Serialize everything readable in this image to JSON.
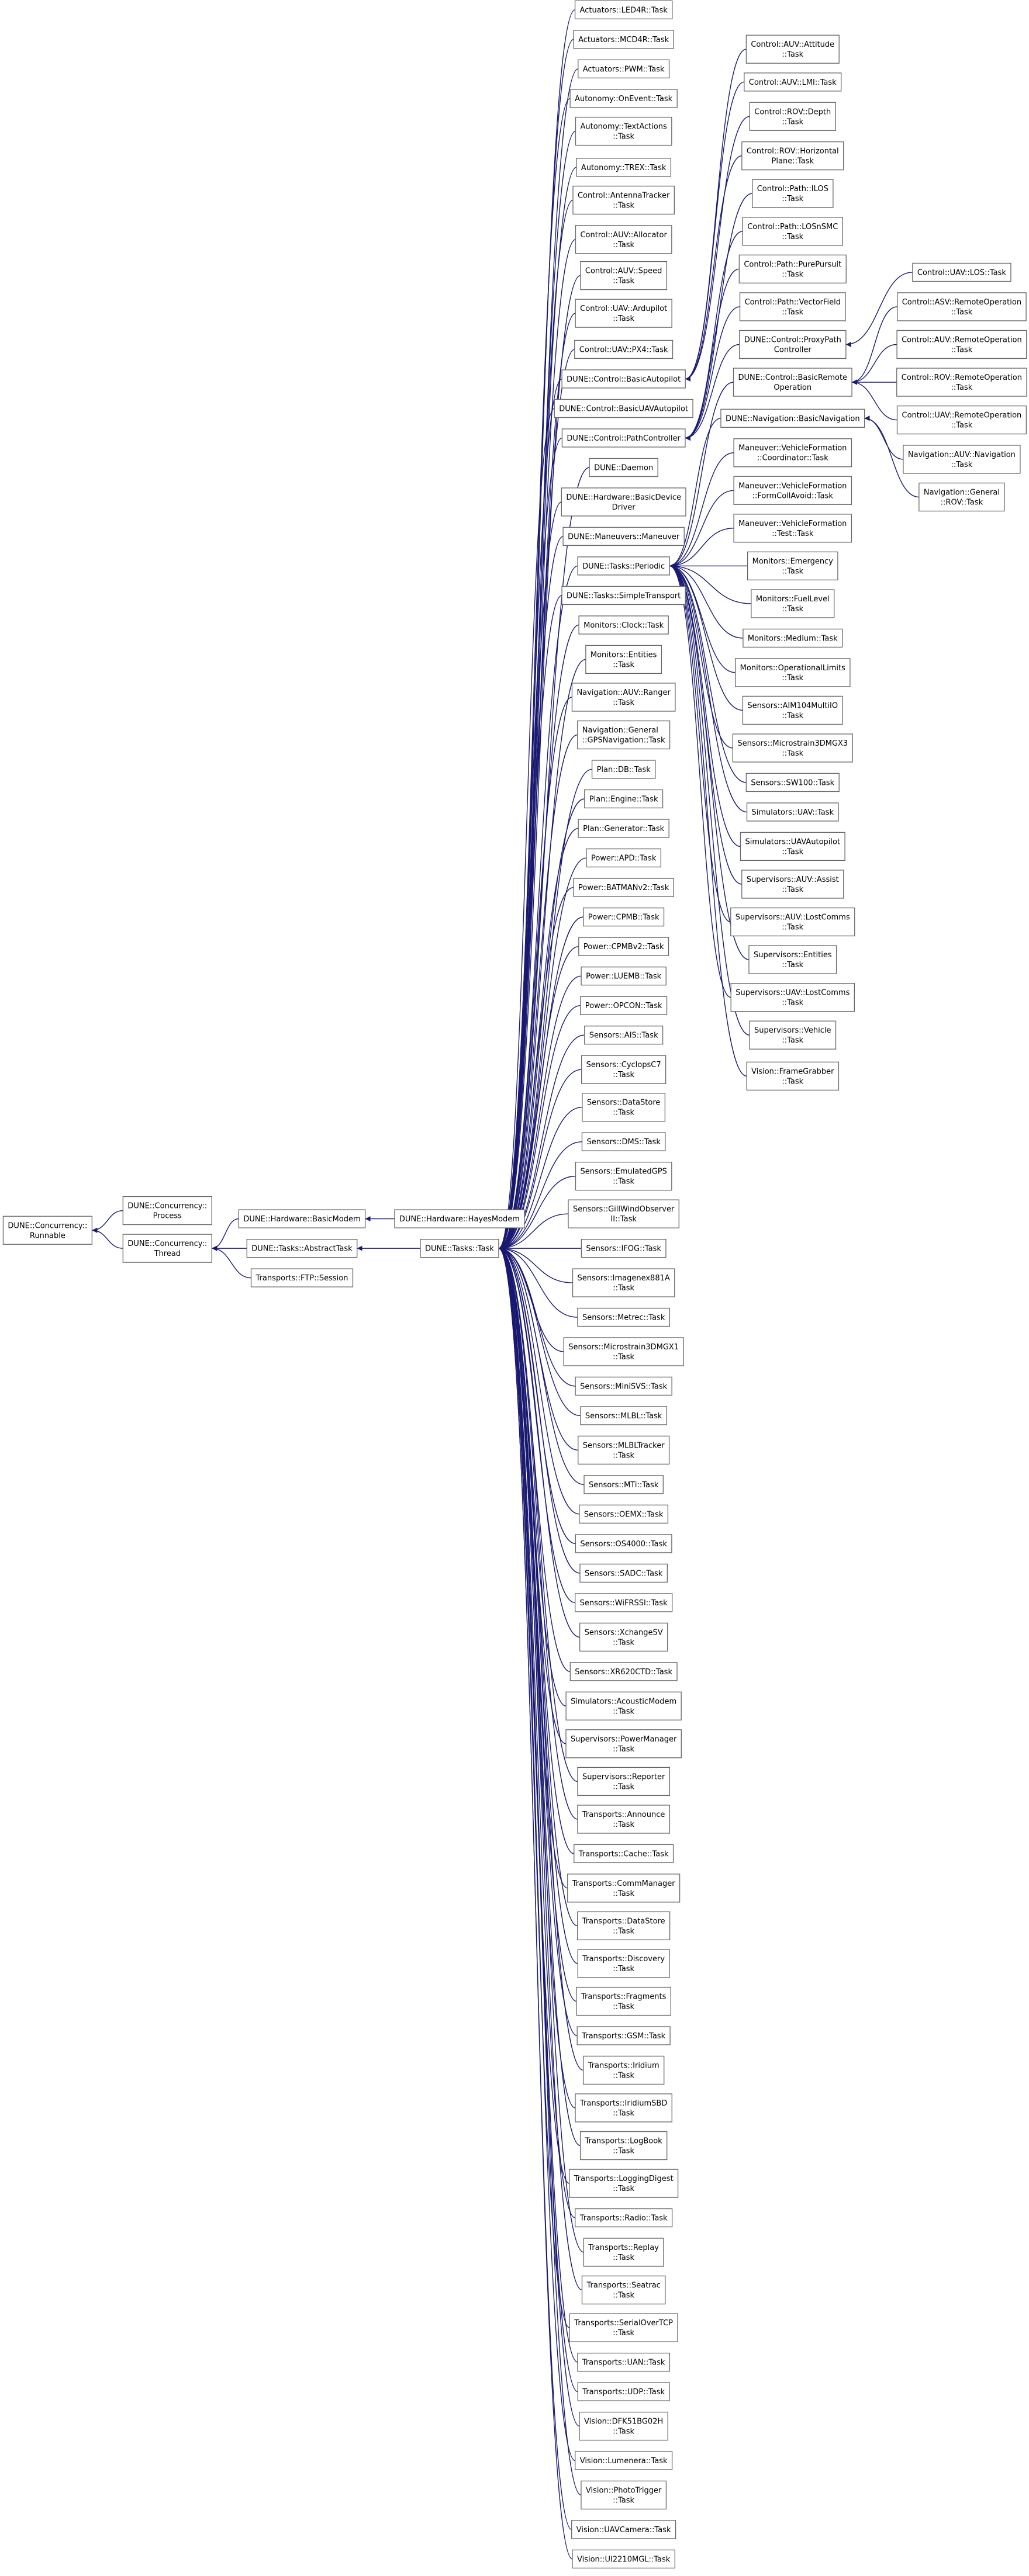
{
  "nodes": [
    [
      "DUNE::Concurrency::",
      "Runnable"
    ],
    [
      "DUNE::Concurrency::",
      "Process"
    ],
    [
      "DUNE::Concurrency::",
      "Thread"
    ],
    [
      "DUNE::Hardware::BasicModem"
    ],
    [
      "DUNE::Tasks::AbstractTask"
    ],
    [
      "Transports::FTP::Session"
    ],
    [
      "DUNE::Hardware::HayesModem"
    ],
    [
      "DUNE::Tasks::Task"
    ],
    [
      "Actuators::LED4R::Task"
    ],
    [
      "Actuators::MCD4R::Task"
    ],
    [
      "Actuators::PWM::Task"
    ],
    [
      "Autonomy::OnEvent::Task"
    ],
    [
      "Autonomy::TextActions",
      "::Task"
    ],
    [
      "Autonomy::TREX::Task"
    ],
    [
      "Control::AntennaTracker",
      "::Task"
    ],
    [
      "Control::AUV::Allocator",
      "::Task"
    ],
    [
      "Control::AUV::Speed",
      "::Task"
    ],
    [
      "Control::UAV::Ardupilot",
      "::Task"
    ],
    [
      "Control::UAV::PX4::Task"
    ],
    [
      "DUNE::Control::BasicAutopilot"
    ],
    [
      "DUNE::Control::BasicUAVAutopilot"
    ],
    [
      "DUNE::Control::PathController"
    ],
    [
      "DUNE::Daemon"
    ],
    [
      "DUNE::Hardware::BasicDevice",
      "Driver"
    ],
    [
      "DUNE::Maneuvers::Maneuver"
    ],
    [
      "DUNE::Tasks::Periodic"
    ],
    [
      "DUNE::Tasks::SimpleTransport"
    ],
    [
      "Monitors::Clock::Task"
    ],
    [
      "Monitors::Entities",
      "::Task"
    ],
    [
      "Navigation::AUV::Ranger",
      "::Task"
    ],
    [
      "Navigation::General",
      "::GPSNavigation::Task"
    ],
    [
      "Plan::DB::Task"
    ],
    [
      "Plan::Engine::Task"
    ],
    [
      "Plan::Generator::Task"
    ],
    [
      "Power::APD::Task"
    ],
    [
      "Power::BATMANv2::Task"
    ],
    [
      "Power::CPMB::Task"
    ],
    [
      "Power::CPMBv2::Task"
    ],
    [
      "Power::LUEMB::Task"
    ],
    [
      "Power::OPCON::Task"
    ],
    [
      "Sensors::AIS::Task"
    ],
    [
      "Sensors::CyclopsC7",
      "::Task"
    ],
    [
      "Sensors::DataStore",
      "::Task"
    ],
    [
      "Sensors::DMS::Task"
    ],
    [
      "Sensors::EmulatedGPS",
      "::Task"
    ],
    [
      "Sensors::GillWindObserver",
      "II::Task"
    ],
    [
      "Sensors::IFOG::Task"
    ],
    [
      "Sensors::Imagenex881A",
      "::Task"
    ],
    [
      "Sensors::Metrec::Task"
    ],
    [
      "Sensors::Microstrain3DMGX1",
      "::Task"
    ],
    [
      "Sensors::MiniSVS::Task"
    ],
    [
      "Sensors::MLBL::Task"
    ],
    [
      "Sensors::MLBLTracker",
      "::Task"
    ],
    [
      "Sensors::MTi::Task"
    ],
    [
      "Sensors::OEMX::Task"
    ],
    [
      "Sensors::OS4000::Task"
    ],
    [
      "Sensors::SADC::Task"
    ],
    [
      "Sensors::WiFRSSI::Task"
    ],
    [
      "Sensors::XchangeSV",
      "::Task"
    ],
    [
      "Sensors::XR620CTD::Task"
    ],
    [
      "Simulators::AcousticModem",
      "::Task"
    ],
    [
      "Supervisors::PowerManager",
      "::Task"
    ],
    [
      "Supervisors::Reporter",
      "::Task"
    ],
    [
      "Transports::Announce",
      "::Task"
    ],
    [
      "Transports::Cache::Task"
    ],
    [
      "Transports::CommManager",
      "::Task"
    ],
    [
      "Transports::DataStore",
      "::Task"
    ],
    [
      "Transports::Discovery",
      "::Task"
    ],
    [
      "Transports::Fragments",
      "::Task"
    ],
    [
      "Transports::GSM::Task"
    ],
    [
      "Transports::Iridium",
      "::Task"
    ],
    [
      "Transports::IridiumSBD",
      "::Task"
    ],
    [
      "Transports::LogBook",
      "::Task"
    ],
    [
      "Transports::LoggingDigest",
      "::Task"
    ],
    [
      "Transports::Radio::Task"
    ],
    [
      "Transports::Replay",
      "::Task"
    ],
    [
      "Transports::Seatrac",
      "::Task"
    ],
    [
      "Transports::SerialOverTCP",
      "::Task"
    ],
    [
      "Transports::UAN::Task"
    ],
    [
      "Transports::UDP::Task"
    ],
    [
      "Vision::DFK51BG02H",
      "::Task"
    ],
    [
      "Vision::Lumenera::Task"
    ],
    [
      "Vision::PhotoTrigger",
      "::Task"
    ],
    [
      "Vision::UAVCamera::Task"
    ],
    [
      "Vision::UI2210MGL::Task"
    ],
    [
      "Control::AUV::Attitude",
      "::Task"
    ],
    [
      "Control::AUV::LMI::Task"
    ],
    [
      "Control::ROV::Depth",
      "::Task"
    ],
    [
      "Control::ROV::Horizontal",
      "Plane::Task"
    ],
    [
      "Control::Path::ILOS",
      "::Task"
    ],
    [
      "Control::Path::LOSnSMC",
      "::Task"
    ],
    [
      "Control::Path::PurePursuit",
      "::Task"
    ],
    [
      "Control::Path::VectorField",
      "::Task"
    ],
    [
      "DUNE::Control::ProxyPath",
      "Controller"
    ],
    [
      "DUNE::Control::BasicRemote",
      "Operation"
    ],
    [
      "DUNE::Navigation::BasicNavigation"
    ],
    [
      "Maneuver::VehicleFormation",
      "::Coordinator::Task"
    ],
    [
      "Maneuver::VehicleFormation",
      "::FormCollAvoid::Task"
    ],
    [
      "Maneuver::VehicleFormation",
      "::Test::Task"
    ],
    [
      "Monitors::Emergency",
      "::Task"
    ],
    [
      "Monitors::FuelLevel",
      "::Task"
    ],
    [
      "Monitors::Medium::Task"
    ],
    [
      "Monitors::OperationalLimits",
      "::Task"
    ],
    [
      "Sensors::AIM104MultiIO",
      "::Task"
    ],
    [
      "Sensors::Microstrain3DMGX3",
      "::Task"
    ],
    [
      "Sensors::SW100::Task"
    ],
    [
      "Simulators::UAV::Task"
    ],
    [
      "Simulators::UAVAutopilot",
      "::Task"
    ],
    [
      "Supervisors::AUV::Assist",
      "::Task"
    ],
    [
      "Supervisors::AUV::LostComms",
      "::Task"
    ],
    [
      "Supervisors::Entities",
      "::Task"
    ],
    [
      "Supervisors::UAV::LostComms",
      "::Task"
    ],
    [
      "Supervisors::Vehicle",
      "::Task"
    ],
    [
      "Vision::FrameGrabber",
      "::Task"
    ],
    [
      "Control::UAV::LOS::Task"
    ],
    [
      "Control::ASV::RemoteOperation",
      "::Task"
    ],
    [
      "Control::AUV::RemoteOperation",
      "::Task"
    ],
    [
      "Control::ROV::RemoteOperation",
      "::Task"
    ],
    [
      "Control::UAV::RemoteOperation",
      "::Task"
    ],
    [
      "Navigation::AUV::Navigation",
      "::Task"
    ],
    [
      "Navigation::General",
      "::ROV::Task"
    ]
  ]
}
